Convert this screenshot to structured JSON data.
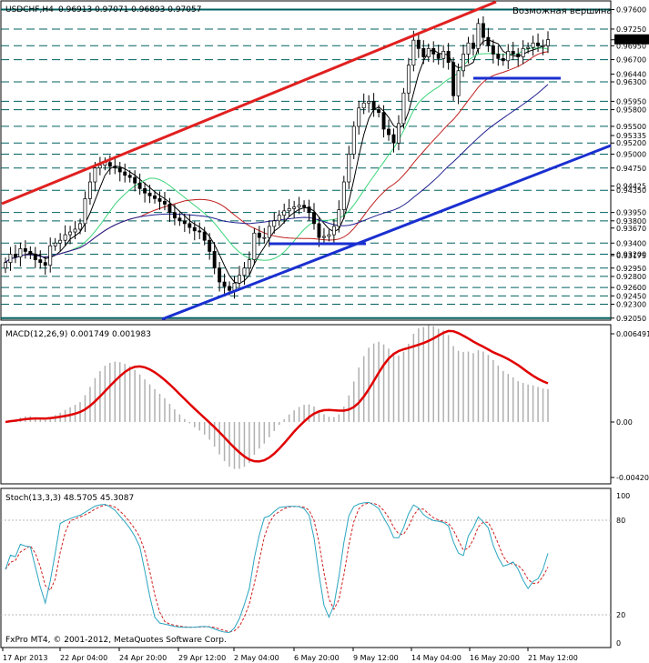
{
  "header": {
    "symbol": "USDCHF,H4",
    "ohlc": "0.96913 0.97071 0.96893 0.97057"
  },
  "annotation": "Возможная вершина",
  "copyright": "FxPro MT4, © 2001-2012, MetaQuotes Software Corp.",
  "colors": {
    "background": "#ffffff",
    "candle": "#000000",
    "level_line": "#006060",
    "trendline_red": "#e02020",
    "trendline_blue": "#1a2fd0",
    "ma_fast": "#000000",
    "ma_mid": "#3ad47a",
    "ma_slow": "#c02020",
    "ma_slowest": "#202090",
    "macd_hist": "#b0b0b0",
    "macd_signal": "#e00000",
    "stoch_main": "#2aa5c0",
    "stoch_signal": "#d02020",
    "annotation_text": "#1a2fd0"
  },
  "price_axis_labels": [
    "0.97600",
    "0.97250",
    "0.97057",
    "0.96950",
    "0.96700",
    "0.96440",
    "0.96300",
    "0.95950",
    "0.95800",
    "0.95500",
    "0.95335",
    "0.95200",
    "0.95000",
    "0.94750",
    "0.94425",
    "0.94350",
    "0.93950",
    "0.93800",
    "0.93670",
    "0.93400",
    "0.93200",
    "0.93175",
    "0.92950",
    "0.92800",
    "0.92600",
    "0.92450",
    "0.92300",
    "0.92050"
  ],
  "macd_panel": {
    "label": "MACD(12,26,9) 0.001749 0.001983",
    "axis_labels": [
      "0.006491",
      "0.00",
      "-0.00420"
    ]
  },
  "stoch_panel": {
    "label": "Stoch(13,3,3) 48.5705 45.3087",
    "axis_labels": [
      "100",
      "80",
      "20",
      "0"
    ]
  },
  "time_axis_labels": [
    "17 Apr 2013",
    "22 Apr 04:00",
    "24 Apr 20:00",
    "29 Apr 12:00",
    "2 May 04:00",
    "6 May 20:00",
    "9 May 12:00",
    "14 May 04:00",
    "16 May 20:00",
    "21 May 12:00"
  ],
  "chart_data": {
    "type": "candlestick",
    "symbol": "USDCHF",
    "timeframe": "H4",
    "ylim": [
      0.9203,
      0.9774
    ],
    "levels": [
      0.976,
      0.9725,
      0.9695,
      0.967,
      0.963,
      0.9595,
      0.958,
      0.955,
      0.952,
      0.95,
      0.9475,
      0.9435,
      0.9395,
      0.938,
      0.934,
      0.932,
      0.9295,
      0.928,
      0.926,
      0.9245,
      0.923,
      0.9205
    ],
    "current_price": 0.97057,
    "close": [
      0.9305,
      0.932,
      0.9315,
      0.933,
      0.9325,
      0.932,
      0.931,
      0.9305,
      0.93,
      0.9335,
      0.934,
      0.9345,
      0.9355,
      0.936,
      0.9365,
      0.9375,
      0.942,
      0.945,
      0.9475,
      0.948,
      0.9485,
      0.9478,
      0.9475,
      0.9468,
      0.9462,
      0.9458,
      0.9448,
      0.9438,
      0.943,
      0.9425,
      0.942,
      0.9415,
      0.941,
      0.9395,
      0.9385,
      0.938,
      0.9375,
      0.9368,
      0.9362,
      0.936,
      0.9345,
      0.9325,
      0.9295,
      0.927,
      0.9262,
      0.9255,
      0.9268,
      0.9282,
      0.9295,
      0.931,
      0.9358,
      0.935,
      0.935,
      0.937,
      0.938,
      0.939,
      0.9398,
      0.9402,
      0.9405,
      0.9408,
      0.9405,
      0.9395,
      0.9375,
      0.935,
      0.9352,
      0.9355,
      0.937,
      0.94,
      0.945,
      0.95,
      0.955,
      0.9583,
      0.9592,
      0.9595,
      0.958,
      0.9575,
      0.9545,
      0.9535,
      0.952,
      0.9555,
      0.961,
      0.966,
      0.9705,
      0.969,
      0.9675,
      0.969,
      0.968,
      0.9672,
      0.9685,
      0.9665,
      0.9605,
      0.965,
      0.968,
      0.97,
      0.969,
      0.9735,
      0.971,
      0.9695,
      0.968,
      0.9672,
      0.9668,
      0.9685,
      0.968,
      0.9675,
      0.969,
      0.9692,
      0.97,
      0.9695,
      0.9695,
      0.9706
    ]
  }
}
